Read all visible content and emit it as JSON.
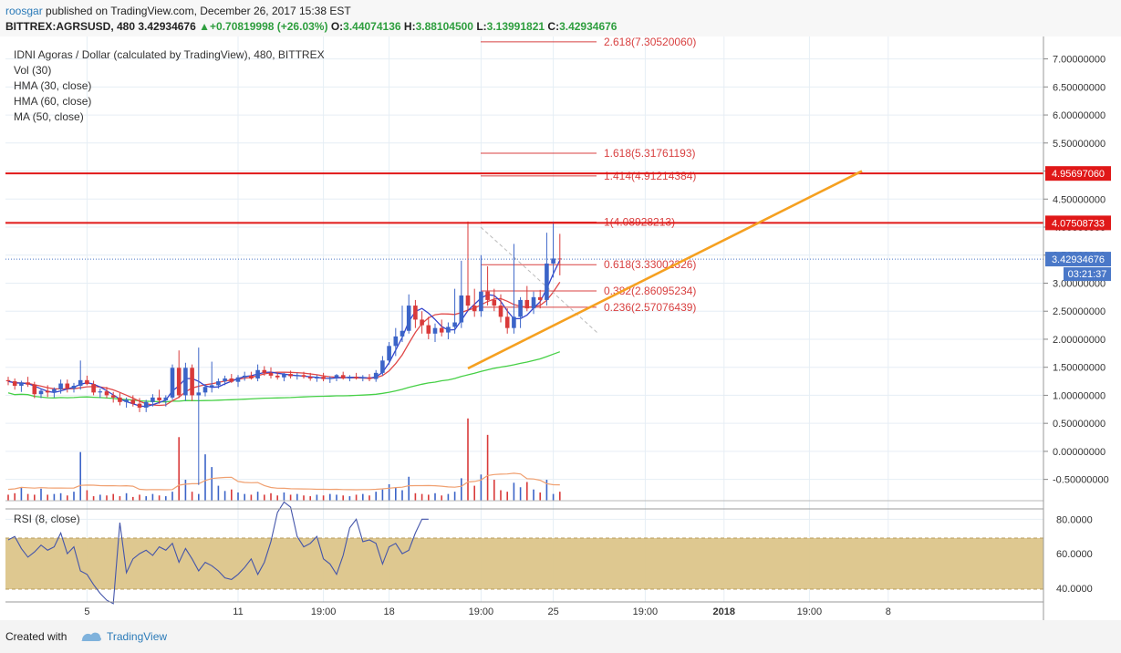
{
  "header": {
    "author": "roosgar",
    "published_text": "published on TradingView.com, December 26, 2017 15:38 EST",
    "symbol": "BITTREX:AGRSUSD, 480",
    "last": "3.42934676",
    "change": "+0.70819998 (+26.03%)",
    "open_label": "O:",
    "open": "3.44074136",
    "high_label": "H:",
    "high": "3.88104500",
    "low_label": "L:",
    "low": "3.13991821",
    "close_label": "C:",
    "close": "3.42934676"
  },
  "legend": {
    "title": "IDNI Agoras / Dollar (calculated by TradingView), 480, BITTREX",
    "vol": "Vol (30)",
    "hma30": "HMA (30, close)",
    "hma60": "HMA (60, close)",
    "ma50": "MA (50, close)",
    "rsi": "RSI (8, close)"
  },
  "badges": {
    "last_price": "3.42934676",
    "countdown": "03:21:37"
  },
  "footer": {
    "created_with": "Created with",
    "brand": "TradingView"
  },
  "colors": {
    "up": "#3b64c8",
    "down": "#d93a3a",
    "hma30": "#3344cc",
    "hma60": "#e04848",
    "ma50": "#46d046",
    "vol_ma": "#f0a070",
    "fib": "#d84040",
    "sr": "#e01818",
    "trend": "#f5a020",
    "rsi_line": "#4455aa",
    "rsi_band": "#dcc58a"
  },
  "chart_data": {
    "type": "candlestick",
    "x_ticks": [
      {
        "label": "5",
        "bar": 12
      },
      {
        "label": "11",
        "bar": 35
      },
      {
        "label": "19:00",
        "bar": 48
      },
      {
        "label": "18",
        "bar": 58
      },
      {
        "label": "19:00",
        "bar": 72
      },
      {
        "label": "25",
        "bar": 83
      },
      {
        "label": "19:00",
        "bar": 97
      },
      {
        "label": "2018",
        "bar": 109,
        "bold": true
      },
      {
        "label": "19:00",
        "bar": 122
      },
      {
        "label": "8",
        "bar": 134
      }
    ],
    "price_axis": {
      "ticks": [
        "7.00000000",
        "6.50000000",
        "6.00000000",
        "5.50000000",
        "5.00000000",
        "4.50000000",
        "4.00000000",
        "3.50000000",
        "3.00000000",
        "2.50000000",
        "2.00000000",
        "1.50000000",
        "1.00000000",
        "0.50000000",
        "0.00000000",
        "-0.50000000"
      ],
      "ylim": [
        -0.88,
        7.4
      ]
    },
    "rsi_axis": {
      "ticks": [
        "80.0000",
        "60.0000",
        "40.0000"
      ],
      "ylim": [
        32,
        86
      ],
      "band": [
        35,
        70
      ]
    },
    "fib_levels": [
      {
        "label": "2.618(7.30520060)",
        "value": 7.3052006
      },
      {
        "label": "1.618(5.31761193)",
        "value": 5.31761193
      },
      {
        "label": "1.414(4.91214384)",
        "value": 4.91214384
      },
      {
        "label": "1(4.08928213)",
        "value": 4.08928213
      },
      {
        "label": "0.618(3.33002326)",
        "value": 3.33002326
      },
      {
        "label": "0.382(2.86095234)",
        "value": 2.86095234
      },
      {
        "label": "0.236(2.57076439)",
        "value": 2.57076439
      }
    ],
    "horizontal_levels": [
      {
        "label": "4.95697060",
        "value": 4.9569706
      },
      {
        "label": "4.07508733",
        "value": 4.07508733
      }
    ],
    "trendline": [
      {
        "bar": 70,
        "price": 1.48
      },
      {
        "bar": 130,
        "price": 5.0
      }
    ],
    "rsi_values": [
      68,
      70,
      63,
      58,
      61,
      65,
      62,
      64,
      72,
      60,
      64,
      50,
      48,
      42,
      37,
      33,
      31,
      78,
      49,
      57,
      60,
      62,
      59,
      64,
      62,
      66,
      55,
      63,
      57,
      50,
      55,
      53,
      50,
      46,
      45,
      48,
      52,
      57,
      48,
      55,
      67,
      84,
      90,
      87,
      70,
      64,
      66,
      70,
      57,
      54,
      48,
      59,
      75,
      80,
      67,
      68,
      66,
      54,
      64,
      66,
      60,
      62,
      72,
      80,
      80
    ],
    "note": "candle OHLC, volume, HMA and MA series are estimated per bar",
    "candles": [
      [
        1.27,
        1.33,
        1.18,
        1.25
      ],
      [
        1.25,
        1.3,
        1.1,
        1.17
      ],
      [
        1.17,
        1.26,
        1.06,
        1.23
      ],
      [
        1.23,
        1.33,
        1.15,
        1.19
      ],
      [
        1.19,
        1.24,
        0.95,
        1.02
      ],
      [
        1.02,
        1.12,
        0.95,
        1.08
      ],
      [
        1.08,
        1.18,
        0.97,
        1.05
      ],
      [
        1.05,
        1.14,
        0.96,
        1.11
      ],
      [
        1.11,
        1.28,
        1.03,
        1.21
      ],
      [
        1.21,
        1.28,
        1.05,
        1.12
      ],
      [
        1.12,
        1.22,
        1.05,
        1.17
      ],
      [
        1.17,
        1.62,
        1.1,
        1.27
      ],
      [
        1.27,
        1.35,
        1.18,
        1.2
      ],
      [
        1.2,
        1.26,
        1.0,
        1.05
      ],
      [
        1.05,
        1.12,
        0.95,
        1.07
      ],
      [
        1.07,
        1.15,
        0.95,
        1.0
      ],
      [
        1.0,
        1.06,
        0.87,
        0.96
      ],
      [
        0.96,
        1.04,
        0.82,
        0.88
      ],
      [
        0.88,
        0.96,
        0.78,
        0.92
      ],
      [
        0.92,
        1.0,
        0.8,
        0.85
      ],
      [
        0.85,
        0.95,
        0.7,
        0.78
      ],
      [
        0.78,
        0.92,
        0.7,
        0.88
      ],
      [
        0.88,
        1.02,
        0.8,
        0.96
      ],
      [
        0.96,
        1.1,
        0.85,
        0.91
      ],
      [
        0.91,
        1.0,
        0.8,
        0.96
      ],
      [
        0.96,
        1.55,
        0.92,
        1.49
      ],
      [
        1.49,
        1.8,
        0.95,
        1.0
      ],
      [
        1.0,
        1.58,
        0.9,
        1.49
      ],
      [
        1.49,
        1.55,
        0.9,
        1.0
      ],
      [
        1.0,
        1.85,
        -0.6,
        1.05
      ],
      [
        1.05,
        1.2,
        0.98,
        1.15
      ],
      [
        1.15,
        1.6,
        1.05,
        1.18
      ],
      [
        1.18,
        1.3,
        1.12,
        1.25
      ],
      [
        1.25,
        1.35,
        1.18,
        1.3
      ],
      [
        1.3,
        1.38,
        1.22,
        1.24
      ],
      [
        1.24,
        1.36,
        1.15,
        1.32
      ],
      [
        1.32,
        1.42,
        1.26,
        1.35
      ],
      [
        1.35,
        1.42,
        1.28,
        1.3
      ],
      [
        1.3,
        1.55,
        1.25,
        1.45
      ],
      [
        1.45,
        1.52,
        1.35,
        1.4
      ],
      [
        1.4,
        1.5,
        1.3,
        1.35
      ],
      [
        1.35,
        1.4,
        1.28,
        1.32
      ],
      [
        1.32,
        1.4,
        1.25,
        1.38
      ],
      [
        1.38,
        1.44,
        1.3,
        1.34
      ],
      [
        1.34,
        1.4,
        1.28,
        1.36
      ],
      [
        1.36,
        1.42,
        1.3,
        1.33
      ],
      [
        1.33,
        1.4,
        1.26,
        1.3
      ],
      [
        1.3,
        1.36,
        1.24,
        1.33
      ],
      [
        1.33,
        1.4,
        1.25,
        1.29
      ],
      [
        1.29,
        1.34,
        1.22,
        1.31
      ],
      [
        1.31,
        1.38,
        1.25,
        1.36
      ],
      [
        1.36,
        1.42,
        1.28,
        1.3
      ],
      [
        1.3,
        1.36,
        1.25,
        1.33
      ],
      [
        1.33,
        1.4,
        1.28,
        1.3
      ],
      [
        1.3,
        1.36,
        1.25,
        1.32
      ],
      [
        1.32,
        1.38,
        1.25,
        1.29
      ],
      [
        1.29,
        1.45,
        1.24,
        1.4
      ],
      [
        1.4,
        1.7,
        1.35,
        1.62
      ],
      [
        1.62,
        1.95,
        1.55,
        1.88
      ],
      [
        1.88,
        2.2,
        1.7,
        2.05
      ],
      [
        2.05,
        2.6,
        1.95,
        2.15
      ],
      [
        2.15,
        2.8,
        2.1,
        2.6
      ],
      [
        2.6,
        2.7,
        2.2,
        2.35
      ],
      [
        2.35,
        2.5,
        2.1,
        2.25
      ],
      [
        2.25,
        2.4,
        2.0,
        2.1
      ],
      [
        2.1,
        2.28,
        1.95,
        2.2
      ],
      [
        2.2,
        2.35,
        2.05,
        2.12
      ],
      [
        2.12,
        2.3,
        2.0,
        2.22
      ],
      [
        2.22,
        2.9,
        2.1,
        2.3
      ],
      [
        2.3,
        3.4,
        2.2,
        2.78
      ],
      [
        2.78,
        4.1,
        2.5,
        2.6
      ],
      [
        2.6,
        2.9,
        2.4,
        2.5
      ],
      [
        2.5,
        3.5,
        2.4,
        2.85
      ],
      [
        2.85,
        3.3,
        2.6,
        2.7
      ],
      [
        2.7,
        2.9,
        2.5,
        2.6
      ],
      [
        2.6,
        2.8,
        2.3,
        2.4
      ],
      [
        2.4,
        2.55,
        2.1,
        2.2
      ],
      [
        2.2,
        3.7,
        2.1,
        2.4
      ],
      [
        2.4,
        2.75,
        2.2,
        2.7
      ],
      [
        2.7,
        2.95,
        2.5,
        2.55
      ],
      [
        2.55,
        2.85,
        2.45,
        2.75
      ],
      [
        2.75,
        2.88,
        2.55,
        2.7
      ],
      [
        2.7,
        3.9,
        2.6,
        3.35
      ],
      [
        3.35,
        4.1,
        3.1,
        3.44
      ],
      [
        3.44,
        3.88,
        3.14,
        3.43
      ]
    ],
    "volume": [
      8,
      10,
      18,
      9,
      8,
      16,
      8,
      9,
      10,
      7,
      12,
      65,
      14,
      6,
      8,
      7,
      9,
      6,
      10,
      5,
      8,
      6,
      9,
      7,
      6,
      12,
      85,
      28,
      12,
      9,
      62,
      45,
      20,
      13,
      15,
      11,
      9,
      8,
      12,
      8,
      10,
      7,
      11,
      8,
      9,
      7,
      6,
      8,
      7,
      9,
      8,
      7,
      6,
      8,
      9,
      7,
      12,
      15,
      22,
      18,
      14,
      32,
      10,
      9,
      8,
      10,
      7,
      9,
      12,
      30,
      110,
      20,
      35,
      88,
      28,
      14,
      12,
      24,
      18,
      25,
      15,
      11,
      28,
      9,
      12
    ]
  }
}
